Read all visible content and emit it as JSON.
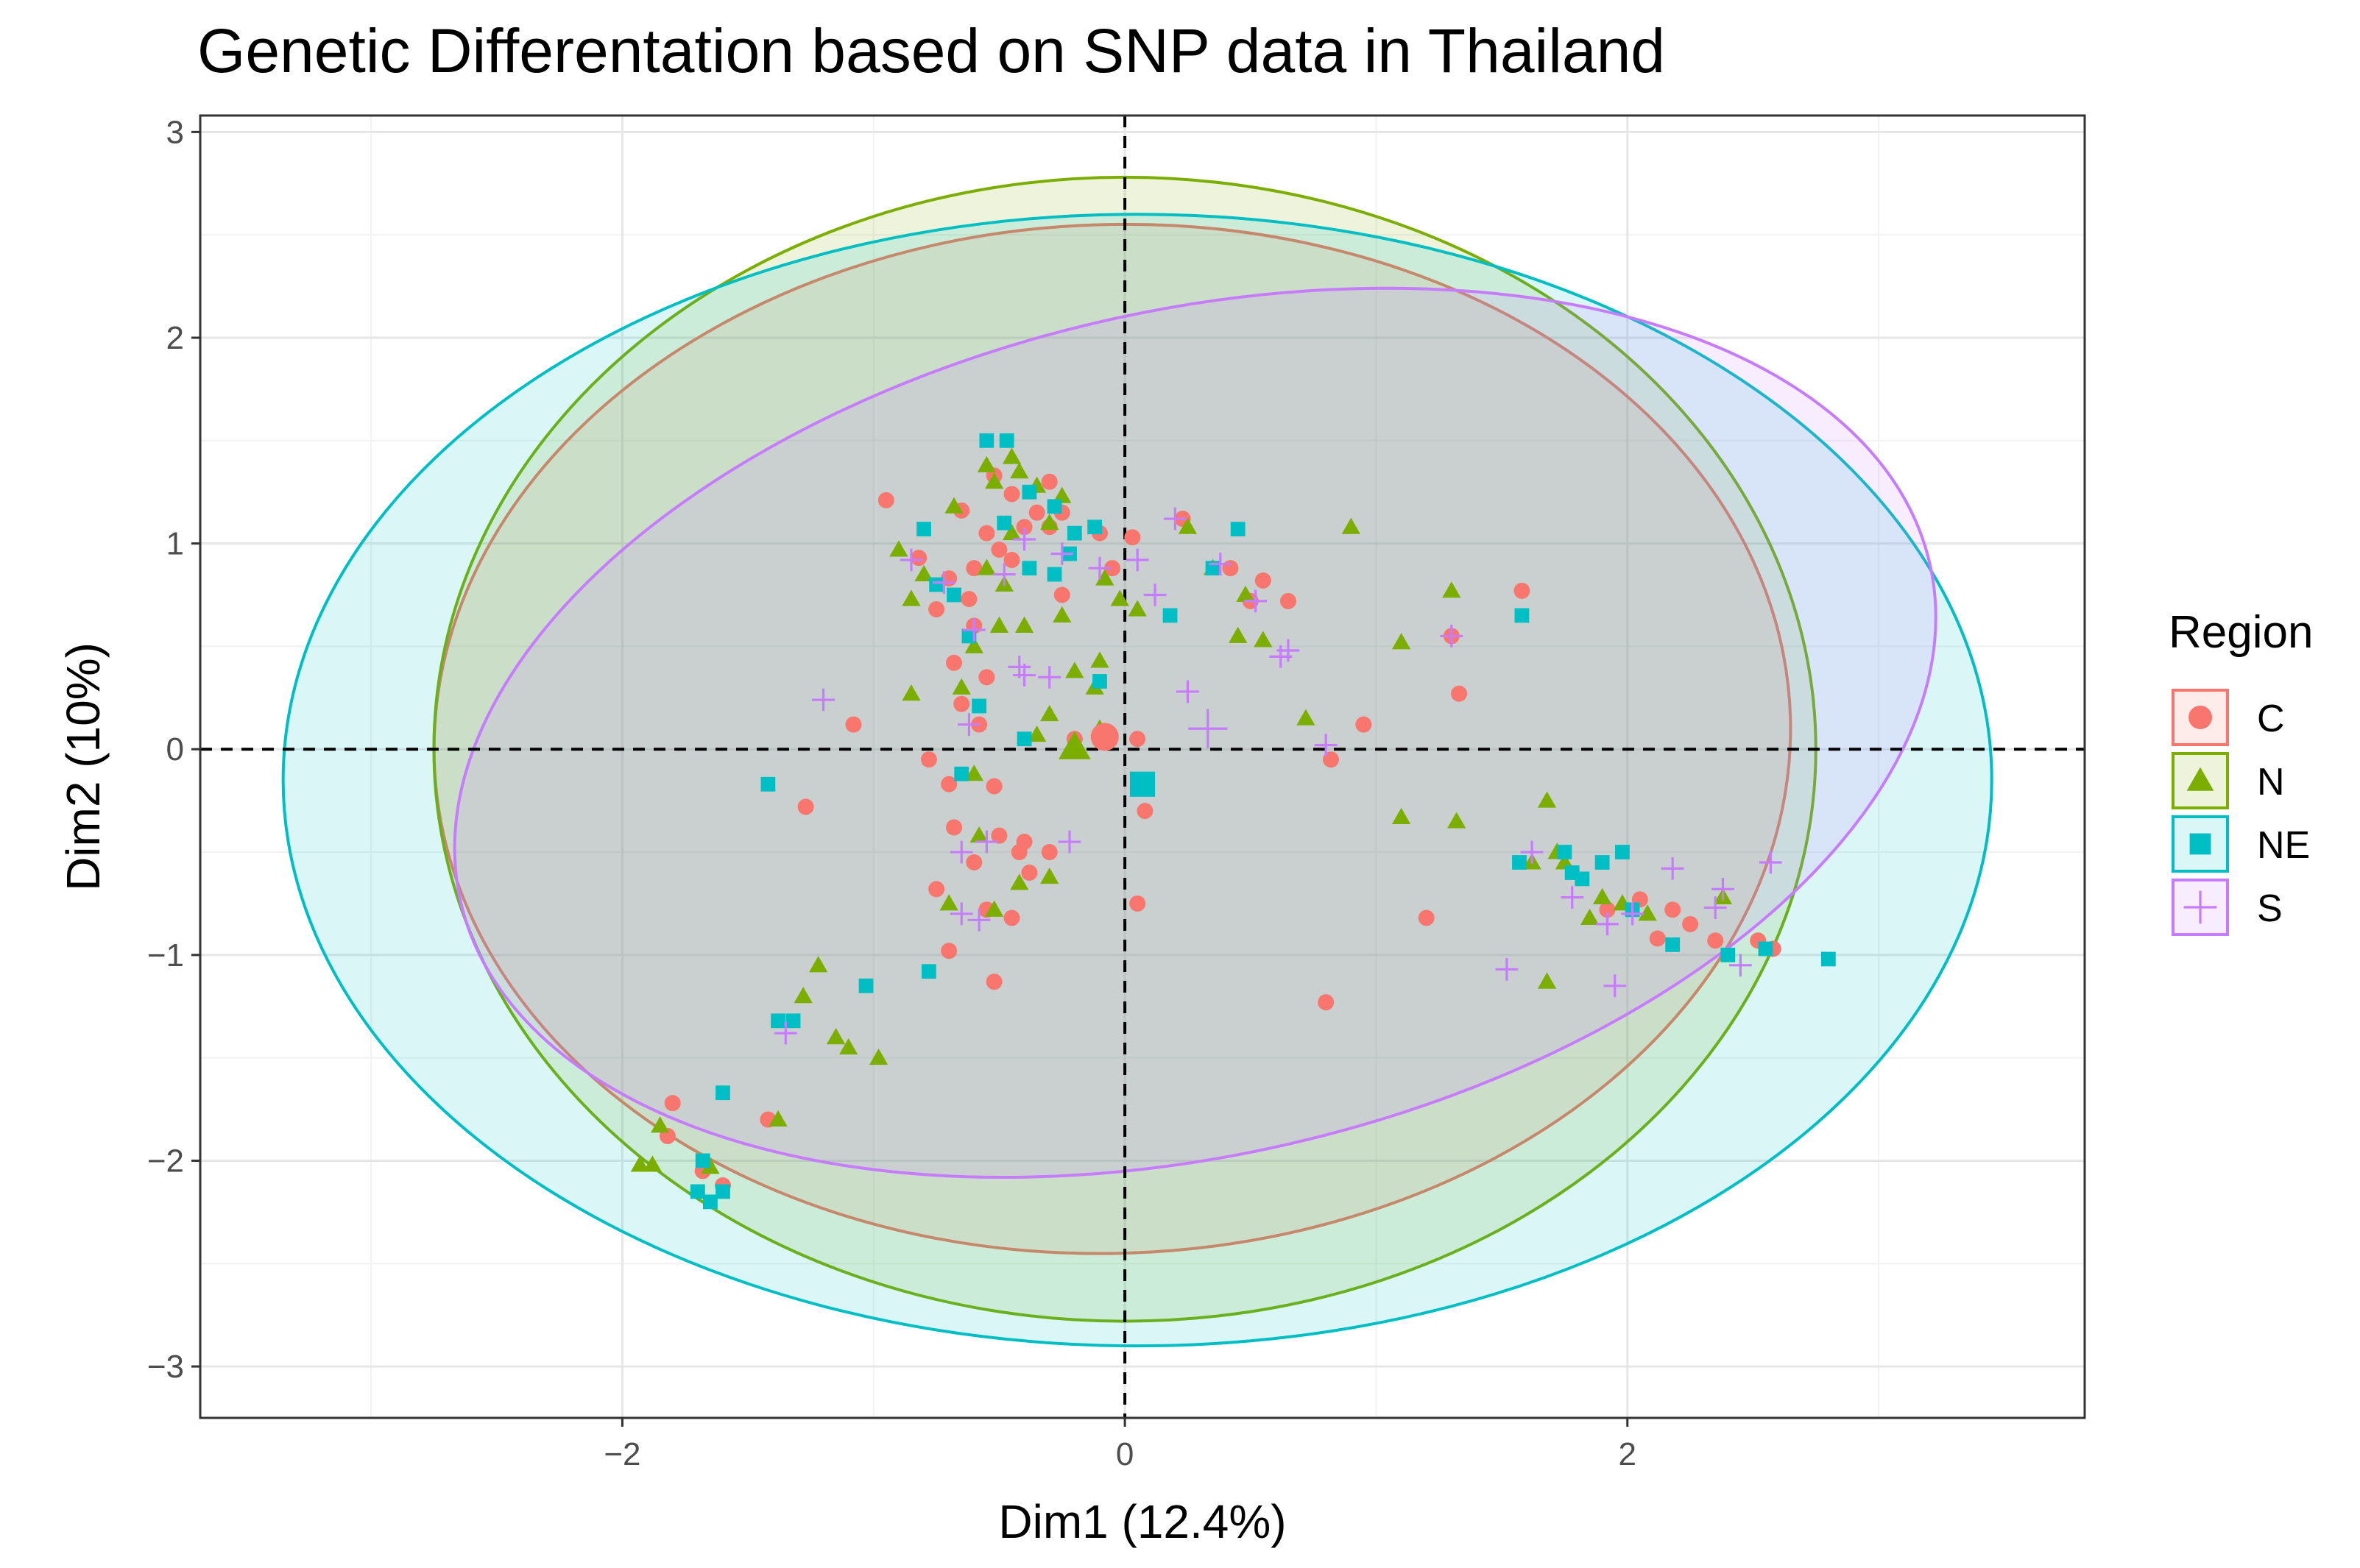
{
  "chart_data": {
    "type": "scatter",
    "title": "Genetic Differentation based on SNP data in Thailand",
    "xlabel": "Dim1 (12.4%)",
    "ylabel": "Dim2 (10%)",
    "xlim": [
      -3.68,
      3.82
    ],
    "ylim": [
      -3.25,
      3.08
    ],
    "xticks": [
      -2,
      0,
      2
    ],
    "xtick_labels": [
      "−2",
      "0",
      "2"
    ],
    "yticks": [
      -3,
      -2,
      -1,
      0,
      1,
      2,
      3
    ],
    "ytick_labels": [
      "−3",
      "−2",
      "−1",
      "0",
      "1",
      "2",
      "3"
    ],
    "grid": true,
    "reference_lines": {
      "x": 0,
      "y": 0,
      "style": "dashed"
    },
    "legend_title": "Region",
    "legend_position": "right",
    "series": [
      {
        "name": "C",
        "marker": "circle",
        "color": "#F8766D",
        "mean": [
          -0.08,
          0.06
        ],
        "ellipse": {
          "cx": -0.05,
          "cy": 0.05,
          "rx": 2.7,
          "ry": 2.5,
          "angle": -2
        },
        "points": [
          [
            -0.95,
            1.21
          ],
          [
            -0.82,
            0.93
          ],
          [
            -0.65,
            1.16
          ],
          [
            -0.52,
            1.33
          ],
          [
            -0.45,
            1.24
          ],
          [
            -0.4,
            1.08
          ],
          [
            -0.35,
            1.15
          ],
          [
            -0.3,
            1.08
          ],
          [
            -0.25,
            1.15
          ],
          [
            -0.55,
            1.05
          ],
          [
            -0.5,
            0.97
          ],
          [
            -0.45,
            0.92
          ],
          [
            -0.6,
            0.88
          ],
          [
            -0.7,
            0.83
          ],
          [
            -0.62,
            0.73
          ],
          [
            -0.75,
            0.68
          ],
          [
            -0.6,
            0.6
          ],
          [
            -0.68,
            0.42
          ],
          [
            -0.55,
            0.35
          ],
          [
            -0.65,
            0.22
          ],
          [
            -0.58,
            0.12
          ],
          [
            -1.08,
            0.12
          ],
          [
            -1.27,
            -0.28
          ],
          [
            -0.78,
            -0.05
          ],
          [
            -0.7,
            -0.17
          ],
          [
            -0.52,
            -0.18
          ],
          [
            -0.68,
            -0.38
          ],
          [
            -0.5,
            -0.42
          ],
          [
            -0.4,
            -0.45
          ],
          [
            -0.6,
            -0.55
          ],
          [
            -0.75,
            -0.68
          ],
          [
            -0.38,
            -0.6
          ],
          [
            -0.55,
            -0.78
          ],
          [
            -0.45,
            -0.82
          ],
          [
            -0.7,
            -0.98
          ],
          [
            -0.52,
            -1.13
          ],
          [
            -0.3,
            -0.5
          ],
          [
            -0.2,
            0.05
          ],
          [
            0.03,
            1.03
          ],
          [
            -0.1,
            1.05
          ],
          [
            -0.05,
            0.88
          ],
          [
            -0.25,
            0.75
          ],
          [
            0.05,
            0.05
          ],
          [
            0.08,
            -0.3
          ],
          [
            0.05,
            -0.75
          ],
          [
            0.23,
            1.12
          ],
          [
            0.42,
            0.88
          ],
          [
            0.5,
            0.72
          ],
          [
            0.55,
            0.82
          ],
          [
            0.65,
            0.72
          ],
          [
            0.82,
            -0.05
          ],
          [
            0.95,
            0.12
          ],
          [
            1.3,
            0.55
          ],
          [
            1.33,
            0.27
          ],
          [
            1.58,
            0.77
          ],
          [
            1.2,
            -0.82
          ],
          [
            0.8,
            -1.23
          ],
          [
            -1.8,
            -1.72
          ],
          [
            -1.82,
            -1.88
          ],
          [
            -1.42,
            -1.8
          ],
          [
            -1.68,
            -2.05
          ],
          [
            -1.6,
            -2.12
          ],
          [
            1.92,
            -0.78
          ],
          [
            2.05,
            -0.73
          ],
          [
            2.12,
            -0.92
          ],
          [
            2.18,
            -0.78
          ],
          [
            2.25,
            -0.85
          ],
          [
            2.35,
            -0.93
          ],
          [
            2.52,
            -0.93
          ],
          [
            2.58,
            -0.97
          ],
          [
            -0.42,
            -0.5
          ],
          [
            -0.3,
            1.3
          ]
        ]
      },
      {
        "name": "N",
        "marker": "triangle",
        "color": "#7CAE00",
        "mean": [
          -0.2,
          0.01
        ],
        "ellipse": {
          "cx": 0.0,
          "cy": 0.0,
          "rx": 2.75,
          "ry": 2.78,
          "angle": 0
        },
        "points": [
          [
            -0.9,
            0.97
          ],
          [
            -0.8,
            0.85
          ],
          [
            -0.85,
            0.73
          ],
          [
            -0.85,
            0.27
          ],
          [
            -0.68,
            1.18
          ],
          [
            -0.55,
            1.38
          ],
          [
            -0.52,
            1.3
          ],
          [
            -0.45,
            1.42
          ],
          [
            -0.42,
            1.35
          ],
          [
            -0.35,
            1.28
          ],
          [
            -0.25,
            1.23
          ],
          [
            -0.3,
            1.1
          ],
          [
            -0.45,
            1.05
          ],
          [
            -0.55,
            0.88
          ],
          [
            -0.6,
            0.5
          ],
          [
            -0.48,
            0.8
          ],
          [
            -0.4,
            0.6
          ],
          [
            -0.25,
            0.65
          ],
          [
            -0.2,
            0.38
          ],
          [
            -0.1,
            0.43
          ],
          [
            -0.12,
            0.3
          ],
          [
            -0.3,
            0.17
          ],
          [
            -0.35,
            0.07
          ],
          [
            -0.08,
            0.83
          ],
          [
            -0.02,
            0.73
          ],
          [
            0.05,
            0.68
          ],
          [
            0.25,
            1.08
          ],
          [
            0.35,
            0.88
          ],
          [
            0.48,
            0.75
          ],
          [
            0.45,
            0.55
          ],
          [
            0.55,
            0.53
          ],
          [
            0.72,
            0.15
          ],
          [
            0.9,
            1.08
          ],
          [
            1.1,
            0.52
          ],
          [
            1.3,
            0.77
          ],
          [
            1.32,
            -0.35
          ],
          [
            1.1,
            -0.33
          ],
          [
            1.68,
            -0.25
          ],
          [
            1.62,
            -0.55
          ],
          [
            1.72,
            -0.5
          ],
          [
            1.75,
            -0.55
          ],
          [
            1.85,
            -0.82
          ],
          [
            1.9,
            -0.72
          ],
          [
            1.98,
            -0.75
          ],
          [
            2.08,
            -0.8
          ],
          [
            2.38,
            -0.72
          ],
          [
            1.68,
            -1.13
          ],
          [
            -0.7,
            -0.75
          ],
          [
            -0.52,
            -0.78
          ],
          [
            -0.58,
            -0.42
          ],
          [
            -0.6,
            -0.12
          ],
          [
            -0.42,
            -0.65
          ],
          [
            -0.3,
            -0.62
          ],
          [
            -1.22,
            -1.05
          ],
          [
            -1.28,
            -1.2
          ],
          [
            -1.15,
            -1.4
          ],
          [
            -1.1,
            -1.45
          ],
          [
            -0.98,
            -1.5
          ],
          [
            -1.38,
            -1.8
          ],
          [
            -1.85,
            -1.83
          ],
          [
            -1.88,
            -2.02
          ],
          [
            -1.93,
            -2.02
          ],
          [
            -1.65,
            -2.03
          ],
          [
            -0.1,
            0.1
          ],
          [
            -0.65,
            0.3
          ],
          [
            -0.5,
            0.6
          ]
        ]
      },
      {
        "name": "NE",
        "marker": "square",
        "color": "#00BFC4",
        "mean": [
          0.07,
          -0.17
        ],
        "ellipse": {
          "cx": 0.05,
          "cy": -0.15,
          "rx": 3.4,
          "ry": 2.75,
          "angle": 0
        },
        "points": [
          [
            -0.55,
            1.5
          ],
          [
            -0.47,
            1.5
          ],
          [
            -0.38,
            1.25
          ],
          [
            -0.28,
            1.18
          ],
          [
            -0.2,
            1.05
          ],
          [
            -0.12,
            1.08
          ],
          [
            -0.22,
            0.95
          ],
          [
            -0.28,
            0.85
          ],
          [
            -0.38,
            0.88
          ],
          [
            -0.48,
            1.1
          ],
          [
            -0.75,
            0.8
          ],
          [
            -0.8,
            1.07
          ],
          [
            -0.68,
            0.75
          ],
          [
            -0.62,
            0.55
          ],
          [
            -0.58,
            0.21
          ],
          [
            -0.65,
            -0.12
          ],
          [
            -0.4,
            0.05
          ],
          [
            -0.1,
            0.33
          ],
          [
            0.18,
            0.65
          ],
          [
            0.35,
            0.88
          ],
          [
            0.45,
            1.07
          ],
          [
            1.58,
            0.65
          ],
          [
            1.57,
            -0.55
          ],
          [
            1.75,
            -0.5
          ],
          [
            1.78,
            -0.6
          ],
          [
            1.82,
            -0.63
          ],
          [
            1.9,
            -0.55
          ],
          [
            1.98,
            -0.5
          ],
          [
            2.02,
            -0.78
          ],
          [
            2.18,
            -0.95
          ],
          [
            2.4,
            -1.0
          ],
          [
            2.55,
            -0.97
          ],
          [
            2.8,
            -1.02
          ],
          [
            -1.42,
            -0.17
          ],
          [
            -1.03,
            -1.15
          ],
          [
            -0.78,
            -1.08
          ],
          [
            -1.38,
            -1.32
          ],
          [
            -1.32,
            -1.32
          ],
          [
            -1.6,
            -1.67
          ],
          [
            -1.68,
            -2.0
          ],
          [
            -1.7,
            -2.15
          ],
          [
            -1.65,
            -2.2
          ],
          [
            -1.6,
            -2.15
          ]
        ]
      },
      {
        "name": "S",
        "marker": "plus",
        "color": "#C77CFF",
        "mean": [
          0.33,
          0.1
        ],
        "ellipse": {
          "cx": 0.28,
          "cy": 0.08,
          "rx": 3.0,
          "ry": 2.05,
          "angle": -13
        },
        "points": [
          [
            -1.2,
            0.24
          ],
          [
            -0.85,
            0.92
          ],
          [
            -0.72,
            0.81
          ],
          [
            -0.62,
            0.12
          ],
          [
            -0.6,
            0.58
          ],
          [
            -0.48,
            0.85
          ],
          [
            -0.42,
            0.4
          ],
          [
            -0.4,
            1.02
          ],
          [
            -0.25,
            0.95
          ],
          [
            -0.3,
            0.35
          ],
          [
            -0.1,
            0.88
          ],
          [
            0.05,
            0.92
          ],
          [
            0.12,
            0.75
          ],
          [
            0.2,
            1.12
          ],
          [
            0.25,
            0.28
          ],
          [
            0.38,
            0.9
          ],
          [
            0.52,
            0.72
          ],
          [
            0.62,
            0.45
          ],
          [
            0.65,
            0.48
          ],
          [
            0.8,
            0.02
          ],
          [
            1.3,
            0.55
          ],
          [
            -0.22,
            -0.45
          ],
          [
            -0.65,
            -0.5
          ],
          [
            -0.58,
            -0.83
          ],
          [
            -0.65,
            -0.8
          ],
          [
            1.52,
            -1.07
          ],
          [
            1.62,
            -0.5
          ],
          [
            1.78,
            -0.72
          ],
          [
            1.92,
            -0.85
          ],
          [
            1.95,
            -1.15
          ],
          [
            2.02,
            -0.8
          ],
          [
            2.18,
            -0.58
          ],
          [
            2.35,
            -0.77
          ],
          [
            2.38,
            -0.68
          ],
          [
            2.45,
            -1.05
          ],
          [
            2.57,
            -0.55
          ],
          [
            -1.35,
            -1.38
          ],
          [
            -0.4,
            0.36
          ],
          [
            -0.55,
            -0.45
          ]
        ]
      }
    ]
  }
}
